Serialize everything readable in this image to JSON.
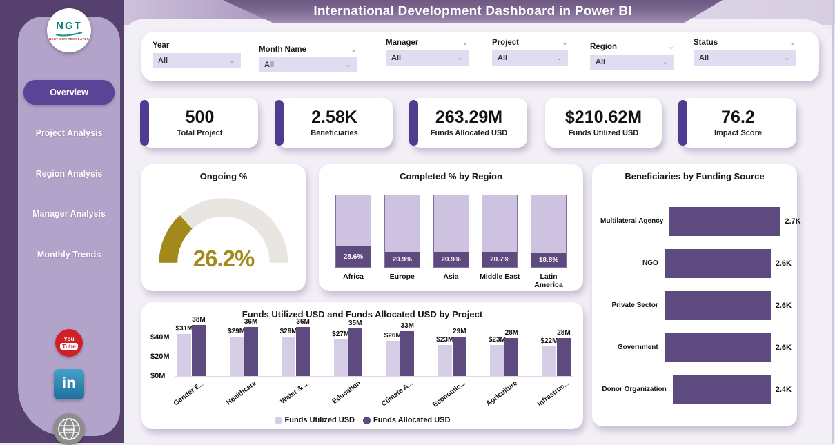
{
  "app": {
    "title": "International Development Dashboard in Power BI"
  },
  "sidebar": {
    "logo": {
      "abbr": "NGT",
      "tagline": "NEXT GEN TEMPLATES"
    },
    "nav": [
      {
        "label": "Overview",
        "active": true
      },
      {
        "label": "Project Analysis",
        "active": false
      },
      {
        "label": "Region Analysis",
        "active": false
      },
      {
        "label": "Manager Analysis",
        "active": false
      },
      {
        "label": "Monthly Trends",
        "active": false
      }
    ],
    "social": [
      {
        "name": "youtube",
        "text_top": "You",
        "text_bottom": "Tube"
      },
      {
        "name": "linkedin",
        "text": "in"
      },
      {
        "name": "website",
        "text": "www"
      }
    ]
  },
  "filters": [
    {
      "label": "Year",
      "value": "All",
      "header_chevron": false
    },
    {
      "label": "Month Name",
      "value": "All",
      "header_chevron": true
    },
    {
      "label": "Manager",
      "value": "All",
      "header_chevron": true
    },
    {
      "label": "Project",
      "value": "All",
      "header_chevron": true
    },
    {
      "label": "Region",
      "value": "All",
      "header_chevron": true
    },
    {
      "label": "Status",
      "value": "All",
      "header_chevron": true
    }
  ],
  "kpis": [
    {
      "value": "500",
      "label": "Total Project",
      "accent": true
    },
    {
      "value": "2.58K",
      "label": "Beneficiaries",
      "accent": true
    },
    {
      "value": "263.29M",
      "label": "Funds Allocated USD",
      "accent": true
    },
    {
      "value": "$210.62M",
      "label": "Funds Utilized USD",
      "accent": false
    },
    {
      "value": "76.2",
      "label": "Impact Score",
      "accent": true
    }
  ],
  "chart_data": [
    {
      "type": "gauge",
      "title": "Ongoing %",
      "value": 26.2,
      "min": 0,
      "max": 100,
      "unit": "%",
      "fill_color": "#a3891b",
      "track_color": "#e9e6e2"
    },
    {
      "type": "bar",
      "title": "Completed % by Region",
      "categories": [
        "Africa",
        "Europe",
        "Asia",
        "Middle East",
        "Latin America"
      ],
      "values": [
        28.6,
        20.9,
        20.9,
        20.7,
        18.8
      ],
      "labels": [
        "28.6%",
        "20.9%",
        "20.9%",
        "20.7%",
        "18.8%"
      ],
      "ylim": [
        0,
        100
      ],
      "xlabel": "",
      "ylabel": "",
      "style": "filled-column-with-dark-completed-segment"
    },
    {
      "type": "bar",
      "orientation": "horizontal",
      "title": "Beneficiaries by Funding Source",
      "categories": [
        "Multilateral Agency",
        "NGO",
        "Private Sector",
        "Government",
        "Donor Organization"
      ],
      "values": [
        2.7,
        2.6,
        2.6,
        2.6,
        2.4
      ],
      "labels": [
        "2.7K",
        "2.6K",
        "2.6K",
        "2.6K",
        "2.4K"
      ],
      "xlim": [
        0,
        2.7
      ],
      "bar_color": "#5d4a7e"
    },
    {
      "type": "bar",
      "title": "Funds Utilized USD and Funds Allocated USD by Project",
      "categories": [
        "Gender E...",
        "Healthcare",
        "Water & ...",
        "Education",
        "Climate A...",
        "Economic...",
        "Agriculture",
        "Infrastruc..."
      ],
      "series": [
        {
          "name": "Funds Utilized USD",
          "color": "#d5cce6",
          "values": [
            31,
            29,
            29,
            27,
            26,
            23,
            23,
            22
          ],
          "labels": [
            "$31M",
            "$29M",
            "$29M",
            "$27M",
            "$26M",
            "$23M",
            "$23M",
            "$22M"
          ]
        },
        {
          "name": "Funds Allocated USD",
          "color": "#5d4a7e",
          "values": [
            38,
            36,
            36,
            35,
            33,
            29,
            28,
            28
          ],
          "labels": [
            "38M",
            "36M",
            "36M",
            "35M",
            "33M",
            "29M",
            "28M",
            "28M"
          ]
        }
      ],
      "yticks": [
        "$40M",
        "$20M",
        "$0M"
      ],
      "ylim": [
        0,
        40
      ],
      "legend_position": "bottom"
    }
  ],
  "colors": {
    "accent_purple": "#4f3b90",
    "bar_dark": "#5d4a7e",
    "bar_light": "#d5cce6",
    "gauge_gold": "#a3891b",
    "sidebar_dark": "#55406e",
    "sidebar_light": "#b2a3ca"
  }
}
